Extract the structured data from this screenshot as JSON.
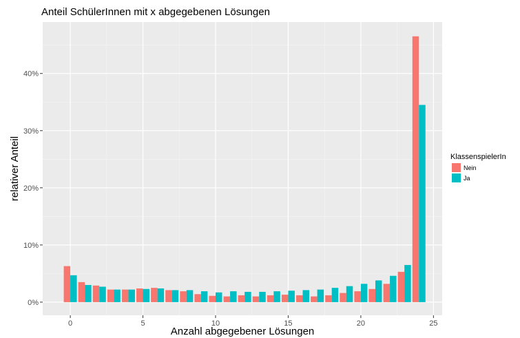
{
  "chart_data": {
    "type": "bar",
    "title": "Anteil SchülerInnen mit x abgegebenen Lösungen",
    "xlabel": "Anzahl abgegebener Lösungen",
    "ylabel": "relativer Anteil",
    "x": [
      0,
      1,
      2,
      3,
      4,
      5,
      6,
      7,
      8,
      9,
      10,
      11,
      12,
      13,
      14,
      15,
      16,
      17,
      18,
      19,
      20,
      21,
      22,
      23,
      24
    ],
    "series": [
      {
        "name": "Nein",
        "color": "#F8766D",
        "values": [
          6.3,
          3.5,
          2.9,
          2.2,
          2.2,
          2.4,
          2.5,
          2.1,
          1.9,
          1.4,
          1.1,
          1.0,
          1.2,
          1.0,
          1.2,
          1.3,
          1.2,
          1.0,
          1.2,
          1.6,
          1.9,
          2.3,
          3.2,
          5.3,
          46.5
        ]
      },
      {
        "name": "Ja",
        "color": "#00BFC4",
        "values": [
          4.7,
          3.0,
          2.7,
          2.2,
          2.2,
          2.3,
          2.4,
          2.1,
          2.1,
          1.9,
          1.7,
          1.9,
          1.8,
          1.8,
          1.9,
          2.0,
          2.1,
          2.2,
          2.5,
          2.8,
          3.2,
          3.8,
          4.6,
          6.5,
          34.5
        ]
      }
    ],
    "xticks": [
      0,
      5,
      10,
      15,
      20,
      25
    ],
    "xtick_labels": [
      "0",
      "5",
      "10",
      "15",
      "20",
      "25"
    ],
    "yticks": [
      0,
      10,
      20,
      30,
      40
    ],
    "ytick_labels": [
      "0%",
      "10%",
      "20%",
      "30%",
      "40%"
    ],
    "xlim": [
      -1.9,
      25.6
    ],
    "ylim": [
      -2.3,
      49.0
    ],
    "grid": true,
    "legend": {
      "title": "KlassenspielerIn",
      "position": "right"
    }
  }
}
